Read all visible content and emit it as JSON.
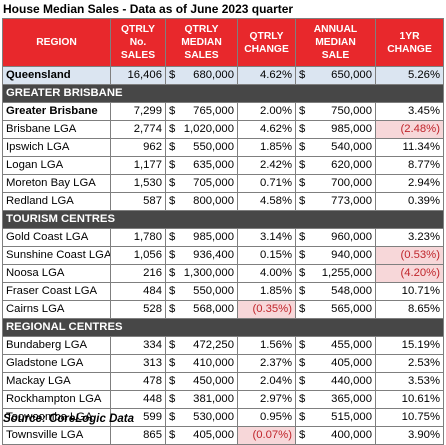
{
  "title": "House Median Sales - Data as of June 2023 quarter",
  "columns": [
    [
      "REGION"
    ],
    [
      "QTRLY",
      "No.",
      "SALES"
    ],
    [
      "QTRLY",
      "MEDIAN",
      "SALES"
    ],
    [
      "QTRLY",
      "CHANGE"
    ],
    [
      "ANNUAL",
      "MEDIAN",
      "SALE"
    ],
    [
      "1YR",
      "CHANGE"
    ]
  ],
  "currency_symbol": "$",
  "rows": [
    {
      "kind": "state",
      "region": "Queensland",
      "sales": "16,406",
      "median": "680,000",
      "qchange": "4.62%",
      "annual": "650,000",
      "ychange": "5.26%"
    },
    {
      "kind": "section",
      "label": "GREATER BRISBANE"
    },
    {
      "kind": "greater",
      "region": "Greater Brisbane",
      "sales": "7,299",
      "median": "765,000",
      "qchange": "2.00%",
      "annual": "750,000",
      "ychange": "3.45%"
    },
    {
      "kind": "row",
      "region": "Brisbane LGA",
      "sales": "2,774",
      "median": "1,020,000",
      "qchange": "4.62%",
      "annual": "985,000",
      "ychange": "(2.48%)",
      "y_neg": true
    },
    {
      "kind": "row",
      "region": "Ipswich LGA",
      "sales": "962",
      "median": "550,000",
      "qchange": "1.85%",
      "annual": "540,000",
      "ychange": "11.34%"
    },
    {
      "kind": "row",
      "region": "Logan LGA",
      "sales": "1,177",
      "median": "635,000",
      "qchange": "2.42%",
      "annual": "620,000",
      "ychange": "8.77%"
    },
    {
      "kind": "row",
      "region": "Moreton Bay LGA",
      "sales": "1,530",
      "median": "705,000",
      "qchange": "0.71%",
      "annual": "700,000",
      "ychange": "2.94%"
    },
    {
      "kind": "row",
      "region": "Redland LGA",
      "sales": "587",
      "median": "800,000",
      "qchange": "4.58%",
      "annual": "773,000",
      "ychange": "0.39%"
    },
    {
      "kind": "section",
      "label": "TOURISM CENTRES"
    },
    {
      "kind": "row",
      "region": "Gold Coast LGA",
      "sales": "1,780",
      "median": "985,000",
      "qchange": "3.14%",
      "annual": "960,000",
      "ychange": "3.23%"
    },
    {
      "kind": "row",
      "region": "Sunshine Coast LGA",
      "sales": "1,056",
      "median": "936,400",
      "qchange": "0.15%",
      "annual": "940,000",
      "ychange": "(0.53%)",
      "y_neg": true
    },
    {
      "kind": "row",
      "region": "Noosa LGA",
      "sales": "216",
      "median": "1,300,000",
      "qchange": "4.00%",
      "annual": "1,255,000",
      "ychange": "(4.20%)",
      "y_neg": true
    },
    {
      "kind": "row",
      "region": "Fraser Coast LGA",
      "sales": "484",
      "median": "550,000",
      "qchange": "1.85%",
      "annual": "548,000",
      "ychange": "10.71%"
    },
    {
      "kind": "row",
      "region": "Cairns LGA",
      "sales": "528",
      "median": "568,000",
      "qchange": "(0.35%)",
      "q_neg": true,
      "annual": "565,000",
      "ychange": "8.65%"
    },
    {
      "kind": "section",
      "label": "REGIONAL CENTRES"
    },
    {
      "kind": "row",
      "region": "Bundaberg LGA",
      "sales": "334",
      "median": "472,250",
      "qchange": "1.56%",
      "annual": "455,000",
      "ychange": "15.19%"
    },
    {
      "kind": "row",
      "region": "Gladstone LGA",
      "sales": "313",
      "median": "410,000",
      "qchange": "2.37%",
      "annual": "405,000",
      "ychange": "2.53%"
    },
    {
      "kind": "row",
      "region": "Mackay LGA",
      "sales": "478",
      "median": "450,000",
      "qchange": "2.04%",
      "annual": "440,000",
      "ychange": "3.53%"
    },
    {
      "kind": "row",
      "region": "Rockhampton LGA",
      "sales": "448",
      "median": "381,000",
      "qchange": "2.97%",
      "annual": "365,000",
      "ychange": "10.61%"
    },
    {
      "kind": "row",
      "region": "Toowoomba LGA",
      "sales": "599",
      "median": "530,000",
      "qchange": "0.95%",
      "annual": "515,000",
      "ychange": "10.75%"
    },
    {
      "kind": "row",
      "region": "Townsville LGA",
      "sales": "865",
      "median": "405,000",
      "qchange": "(0.07%)",
      "q_neg": true,
      "annual": "400,000",
      "ychange": "3.90%"
    }
  ],
  "source": "Source: CoreLogic Data",
  "colors": {
    "header_bg": "#e8282c",
    "section_bg": "#474747",
    "state_bg": "#dbe5f1",
    "negative_bg": "#f7d7d9",
    "negative_text": "#c0262c"
  }
}
